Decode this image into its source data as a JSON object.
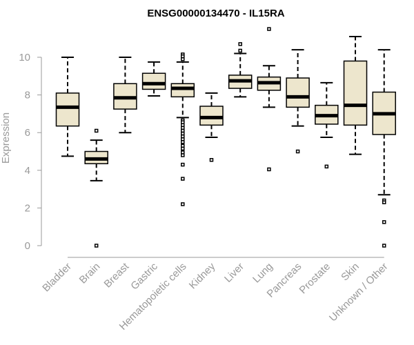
{
  "chart_data": {
    "type": "box",
    "title": "ENSG00000134470 - IL15RA",
    "xlabel": "",
    "ylabel": "Expression",
    "ylim": [
      0,
      10
    ],
    "yticks": [
      0,
      2,
      4,
      6,
      8,
      10
    ],
    "box_color": "#ede6cd",
    "categories": [
      "Bladder",
      "Brain",
      "Breast",
      "Gastric",
      "Hematopoietic cells",
      "Kidney",
      "Liver",
      "Lung",
      "Pancreas",
      "Prostate",
      "Skin",
      "Unknown / Other"
    ],
    "series": [
      {
        "name": "Bladder",
        "whisker_low": 4.75,
        "q1": 6.35,
        "median": 7.35,
        "q3": 8.1,
        "whisker_high": 10.0,
        "outliers": []
      },
      {
        "name": "Brain",
        "whisker_low": 3.45,
        "q1": 4.35,
        "median": 4.6,
        "q3": 5.0,
        "whisker_high": 5.6,
        "outliers": [
          6.1,
          0.0
        ]
      },
      {
        "name": "Breast",
        "whisker_low": 6.0,
        "q1": 7.25,
        "median": 7.85,
        "q3": 8.6,
        "whisker_high": 10.0,
        "outliers": []
      },
      {
        "name": "Gastric",
        "whisker_low": 7.95,
        "q1": 8.3,
        "median": 8.6,
        "q3": 9.15,
        "whisker_high": 9.75,
        "outliers": []
      },
      {
        "name": "Hematopoietic cells",
        "whisker_low": 6.8,
        "q1": 7.9,
        "median": 8.35,
        "q3": 8.6,
        "whisker_high": 9.75,
        "outliers": [
          10.15,
          10.05,
          9.9,
          6.65,
          6.55,
          6.4,
          6.25,
          6.1,
          5.95,
          5.8,
          5.65,
          5.5,
          5.3,
          5.15,
          4.95,
          4.8,
          4.3,
          3.55,
          2.2
        ]
      },
      {
        "name": "Kidney",
        "whisker_low": 5.75,
        "q1": 6.4,
        "median": 6.8,
        "q3": 7.4,
        "whisker_high": 8.1,
        "outliers": [
          4.55
        ]
      },
      {
        "name": "Liver",
        "whisker_low": 7.9,
        "q1": 8.35,
        "median": 8.75,
        "q3": 9.05,
        "whisker_high": 10.2,
        "outliers": [
          10.7,
          10.35
        ]
      },
      {
        "name": "Lung",
        "whisker_low": 7.35,
        "q1": 8.25,
        "median": 8.65,
        "q3": 8.95,
        "whisker_high": 9.55,
        "outliers": [
          11.5,
          4.05
        ]
      },
      {
        "name": "Pancreas",
        "whisker_low": 6.35,
        "q1": 7.35,
        "median": 7.9,
        "q3": 8.9,
        "whisker_high": 10.4,
        "outliers": [
          5.0
        ]
      },
      {
        "name": "Prostate",
        "whisker_low": 5.75,
        "q1": 6.45,
        "median": 6.9,
        "q3": 7.45,
        "whisker_high": 8.65,
        "outliers": [
          4.2
        ]
      },
      {
        "name": "Skin",
        "whisker_low": 4.85,
        "q1": 6.4,
        "median": 7.45,
        "q3": 9.8,
        "whisker_high": 11.1,
        "outliers": []
      },
      {
        "name": "Unknown / Other",
        "whisker_low": 2.7,
        "q1": 5.9,
        "median": 7.0,
        "q3": 8.15,
        "whisker_high": 10.4,
        "outliers": [
          2.4,
          2.3,
          1.25,
          0.0
        ]
      }
    ]
  }
}
